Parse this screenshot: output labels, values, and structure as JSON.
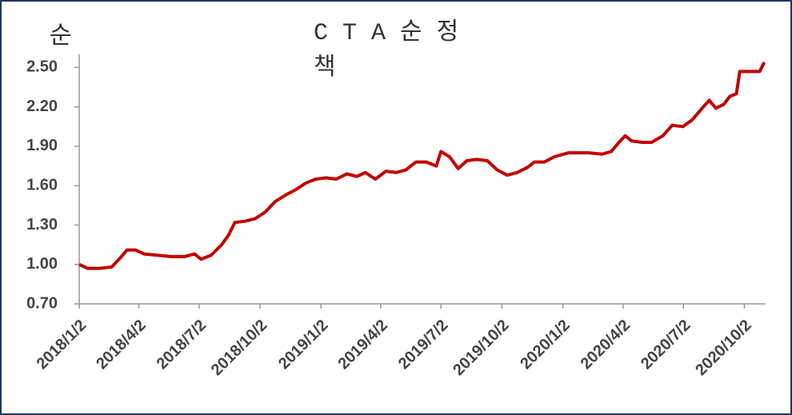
{
  "chart_data": {
    "type": "line",
    "title": "C T A 순 정 책",
    "y_label": "순",
    "x": [
      "2018/1/2",
      "2018/1/15",
      "2018/2/1",
      "2018/2/20",
      "2018/3/5",
      "2018/3/15",
      "2018/3/28",
      "2018/4/10",
      "2018/5/1",
      "2018/5/20",
      "2018/6/10",
      "2018/6/25",
      "2018/7/5",
      "2018/7/20",
      "2018/8/5",
      "2018/8/15",
      "2018/8/25",
      "2018/9/10",
      "2018/9/25",
      "2018/10/10",
      "2018/10/25",
      "2018/11/10",
      "2018/11/25",
      "2018/12/10",
      "2018/12/25",
      "2019/1/10",
      "2019/1/25",
      "2019/2/10",
      "2019/2/25",
      "2019/3/10",
      "2019/3/25",
      "2019/4/10",
      "2019/4/25",
      "2019/5/10",
      "2019/5/25",
      "2019/6/10",
      "2019/6/25",
      "2019/7/2",
      "2019/7/15",
      "2019/7/28",
      "2019/8/10",
      "2019/8/25",
      "2019/9/10",
      "2019/9/25",
      "2019/10/10",
      "2019/10/25",
      "2019/11/10",
      "2019/11/20",
      "2019/12/5",
      "2019/12/20",
      "2020/1/10",
      "2020/1/25",
      "2020/2/10",
      "2020/3/1",
      "2020/3/15",
      "2020/3/25",
      "2020/4/5",
      "2020/4/15",
      "2020/5/1",
      "2020/5/15",
      "2020/6/1",
      "2020/6/15",
      "2020/7/1",
      "2020/7/15",
      "2020/8/1",
      "2020/8/10",
      "2020/8/20",
      "2020/9/1",
      "2020/9/10",
      "2020/9/20",
      "2020/9/25",
      "2020/10/10",
      "2020/10/25",
      "2020/11/1"
    ],
    "series": [
      {
        "name": "CTA",
        "color": "#c00000",
        "values": [
          1.0,
          0.97,
          0.97,
          0.98,
          1.05,
          1.11,
          1.11,
          1.08,
          1.07,
          1.06,
          1.06,
          1.08,
          1.04,
          1.07,
          1.15,
          1.22,
          1.32,
          1.33,
          1.35,
          1.4,
          1.48,
          1.53,
          1.57,
          1.62,
          1.65,
          1.66,
          1.65,
          1.69,
          1.67,
          1.7,
          1.65,
          1.71,
          1.7,
          1.72,
          1.78,
          1.78,
          1.75,
          1.86,
          1.82,
          1.73,
          1.79,
          1.8,
          1.79,
          1.72,
          1.68,
          1.7,
          1.74,
          1.78,
          1.78,
          1.82,
          1.85,
          1.85,
          1.85,
          1.84,
          1.86,
          1.92,
          1.98,
          1.94,
          1.93,
          1.93,
          1.98,
          2.06,
          2.05,
          2.1,
          2.2,
          2.25,
          2.19,
          2.22,
          2.28,
          2.3,
          2.47,
          2.47,
          2.47,
          2.54
        ]
      }
    ],
    "xlim": [
      "2018/1/2",
      "2020/11/3"
    ],
    "xticks": [
      "2018/1/2",
      "2018/4/2",
      "2018/7/2",
      "2018/10/2",
      "2019/1/2",
      "2019/4/2",
      "2019/7/2",
      "2019/10/2",
      "2020/1/2",
      "2020/4/2",
      "2020/7/2",
      "2020/10/2"
    ],
    "ylim": [
      0.7,
      2.6
    ],
    "yticks": [
      {
        "value": 0.7,
        "label": "0.70"
      },
      {
        "value": 1.0,
        "label": "1.00"
      },
      {
        "value": 1.3,
        "label": "1.30"
      },
      {
        "value": 1.6,
        "label": "1.60"
      },
      {
        "value": 1.9,
        "label": "1.90"
      },
      {
        "value": 2.2,
        "label": "2.20"
      },
      {
        "value": 2.5,
        "label": "2.50"
      }
    ],
    "grid": false
  }
}
